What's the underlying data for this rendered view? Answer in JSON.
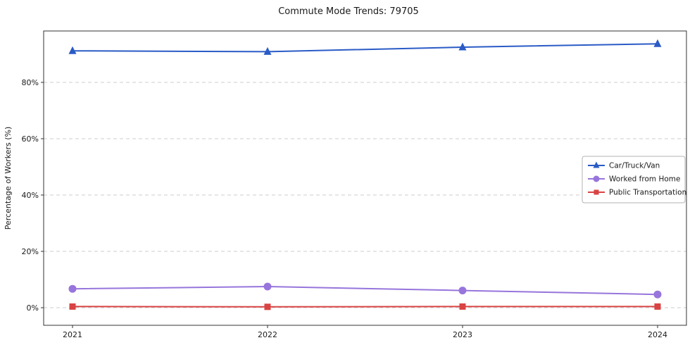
{
  "chart_data": {
    "type": "line",
    "title": "Commute Mode Trends: 79705",
    "xlabel": "",
    "ylabel": "Percentage of Workers (%)",
    "x": [
      2021,
      2022,
      2023,
      2024
    ],
    "x_tick_labels": [
      "2021",
      "2022",
      "2023",
      "2024"
    ],
    "y_ticks": [
      0,
      20,
      40,
      60,
      80
    ],
    "y_tick_labels": [
      "0%",
      "20%",
      "40%",
      "60%",
      "80%"
    ],
    "ylim": [
      -6.25,
      98.25
    ],
    "grid": true,
    "legend_position": "center right",
    "series": [
      {
        "name": "Car/Truck/Van",
        "color": "#2a5bc6",
        "marker": "triangle",
        "values": [
          91.2,
          90.9,
          92.5,
          93.7
        ]
      },
      {
        "name": "Worked from Home",
        "color": "#9775dc",
        "marker": "circle",
        "values": [
          6.7,
          7.5,
          6.1,
          4.7
        ]
      },
      {
        "name": "Public Transportation",
        "color": "#d94343",
        "marker": "square",
        "values": [
          0.4,
          0.3,
          0.4,
          0.4
        ]
      }
    ]
  }
}
